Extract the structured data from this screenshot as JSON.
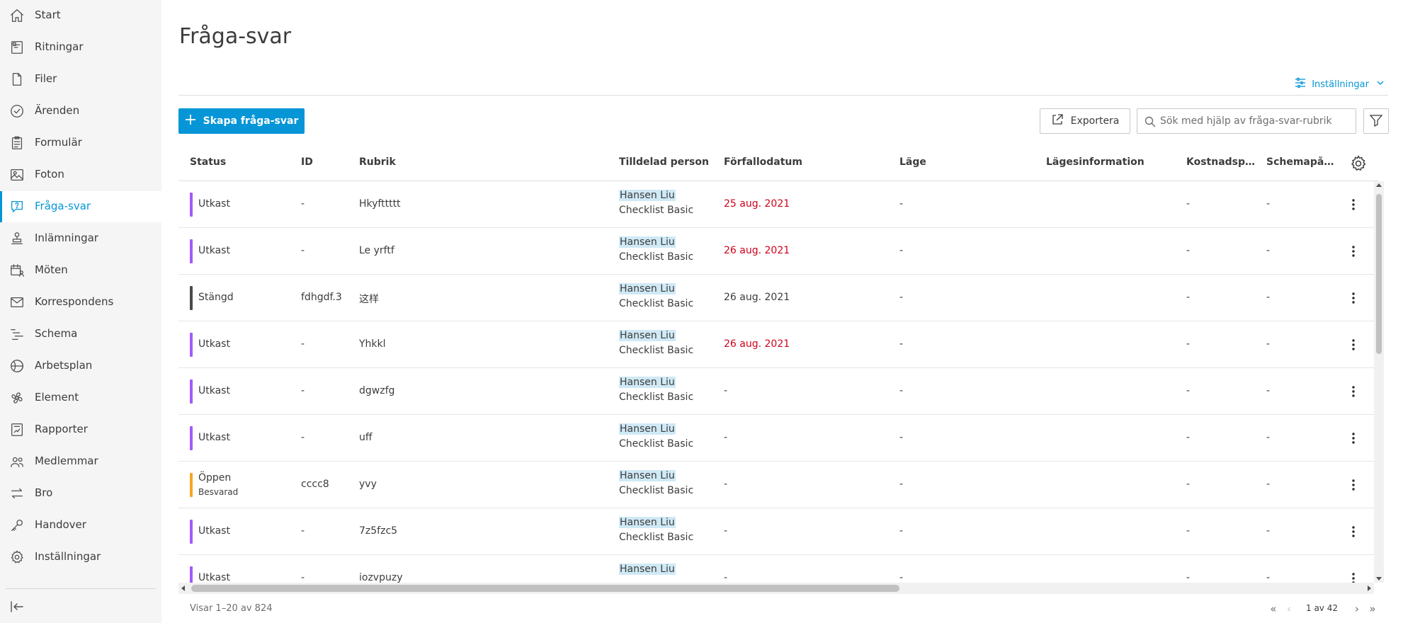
{
  "sidebar": {
    "items": [
      {
        "label": "Start",
        "icon": "home-icon"
      },
      {
        "label": "Ritningar",
        "icon": "sheets-icon"
      },
      {
        "label": "Filer",
        "icon": "file-icon"
      },
      {
        "label": "Ärenden",
        "icon": "check-circle-icon"
      },
      {
        "label": "Formulär",
        "icon": "clipboard-icon"
      },
      {
        "label": "Foton",
        "icon": "photo-icon"
      },
      {
        "label": "Fråga-svar",
        "icon": "question-bubble-icon",
        "active": true
      },
      {
        "label": "Inlämningar",
        "icon": "stamp-icon"
      },
      {
        "label": "Möten",
        "icon": "calendar-people-icon"
      },
      {
        "label": "Korrespondens",
        "icon": "mail-icon"
      },
      {
        "label": "Schema",
        "icon": "schedule-icon"
      },
      {
        "label": "Arbetsplan",
        "icon": "workplan-icon"
      },
      {
        "label": "Element",
        "icon": "element-icon"
      },
      {
        "label": "Rapporter",
        "icon": "report-icon"
      },
      {
        "label": "Medlemmar",
        "icon": "members-icon"
      },
      {
        "label": "Bro",
        "icon": "bridge-icon"
      },
      {
        "label": "Handover",
        "icon": "key-icon"
      },
      {
        "label": "Inställningar",
        "icon": "gear-icon"
      }
    ],
    "collapse_icon": "collapse-sidebar-icon"
  },
  "header": {
    "title": "Fråga-svar",
    "settings_label": "Inställningar"
  },
  "toolbar": {
    "create_label": "Skapa fråga-svar",
    "export_label": "Exportera",
    "search_placeholder": "Sök med hjälp av fråga-svar-rubrik"
  },
  "colors": {
    "accent": "#0696d7",
    "draft": "#a259ff",
    "closed": "#4a4a4a",
    "open": "#f5a623",
    "overdue": "#d0021b"
  },
  "table": {
    "columns": [
      "Status",
      "ID",
      "Rubrik",
      "Tilldelad person",
      "Förfallodatum",
      "Läge",
      "Lägesinformation",
      "Kostnadspå...",
      "Schemapåver..."
    ],
    "rows": [
      {
        "status": "Utkast",
        "status_sub": "",
        "status_color": "#a259ff",
        "id": "-",
        "title": "Hkyfttttt",
        "assignee": "Hansen Liu",
        "role": "Checklist Basic",
        "due": "25 aug. 2021",
        "overdue": true,
        "location": "-",
        "location_info": "",
        "cost": "-",
        "schedule": "-"
      },
      {
        "status": "Utkast",
        "status_sub": "",
        "status_color": "#a259ff",
        "id": "-",
        "title": "Le yrftf",
        "assignee": "Hansen Liu",
        "role": "Checklist Basic",
        "due": "26 aug. 2021",
        "overdue": true,
        "location": "-",
        "location_info": "",
        "cost": "-",
        "schedule": "-"
      },
      {
        "status": "Stängd",
        "status_sub": "",
        "status_color": "#4a4a4a",
        "id": "fdhgdf.3",
        "title": "这样",
        "assignee": "Hansen Liu",
        "role": "Checklist Basic",
        "due": "26 aug. 2021",
        "overdue": false,
        "location": "-",
        "location_info": "",
        "cost": "-",
        "schedule": "-"
      },
      {
        "status": "Utkast",
        "status_sub": "",
        "status_color": "#a259ff",
        "id": "-",
        "title": "Yhkkl",
        "assignee": "Hansen Liu",
        "role": "Checklist Basic",
        "due": "26 aug. 2021",
        "overdue": true,
        "location": "-",
        "location_info": "",
        "cost": "-",
        "schedule": "-"
      },
      {
        "status": "Utkast",
        "status_sub": "",
        "status_color": "#a259ff",
        "id": "-",
        "title": "dgwzfg",
        "assignee": "Hansen Liu",
        "role": "Checklist Basic",
        "due": "-",
        "overdue": false,
        "location": "-",
        "location_info": "",
        "cost": "-",
        "schedule": "-"
      },
      {
        "status": "Utkast",
        "status_sub": "",
        "status_color": "#a259ff",
        "id": "-",
        "title": "uff",
        "assignee": "Hansen Liu",
        "role": "Checklist Basic",
        "due": "-",
        "overdue": false,
        "location": "-",
        "location_info": "",
        "cost": "-",
        "schedule": "-"
      },
      {
        "status": "Öppen",
        "status_sub": "Besvarad",
        "status_color": "#f5a623",
        "id": "cccc8",
        "title": "yvy",
        "assignee": "Hansen Liu",
        "role": "Checklist Basic",
        "due": "-",
        "overdue": false,
        "location": "-",
        "location_info": "",
        "cost": "-",
        "schedule": "-"
      },
      {
        "status": "Utkast",
        "status_sub": "",
        "status_color": "#a259ff",
        "id": "-",
        "title": "7z5fzc5",
        "assignee": "Hansen Liu",
        "role": "Checklist Basic",
        "due": "-",
        "overdue": false,
        "location": "-",
        "location_info": "",
        "cost": "-",
        "schedule": "-"
      },
      {
        "status": "Utkast",
        "status_sub": "",
        "status_color": "#a259ff",
        "id": "-",
        "title": "iozvpuzy",
        "assignee": "Hansen Liu",
        "role": "",
        "due": "-",
        "overdue": false,
        "location": "-",
        "location_info": "",
        "cost": "-",
        "schedule": "-"
      }
    ]
  },
  "footer": {
    "count_text": "Visar 1–20 av 824",
    "page_text": "1 av 42"
  }
}
